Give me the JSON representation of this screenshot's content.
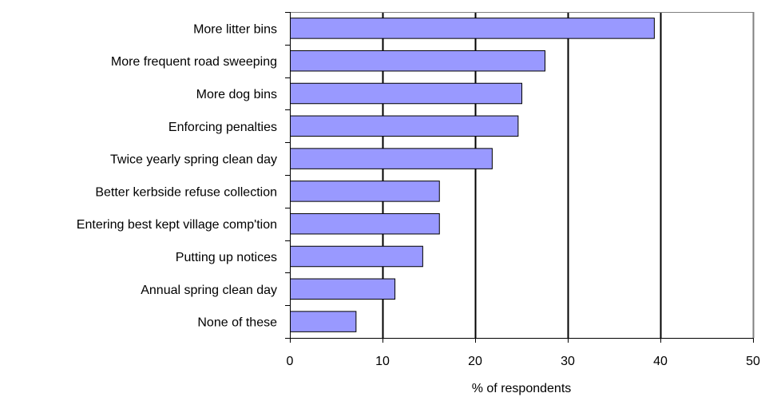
{
  "chart_data": {
    "type": "bar",
    "orientation": "horizontal",
    "categories": [
      "More litter bins",
      "More frequent road sweeping",
      "More dog bins",
      "Enforcing penalties",
      "Twice yearly spring clean day",
      "Better kerbside refuse collection",
      "Entering best kept village comp'tion",
      "Putting up notices",
      "Annual spring clean day",
      "None of these"
    ],
    "values": [
      39.3,
      27.5,
      25.0,
      24.6,
      21.8,
      16.1,
      16.1,
      14.3,
      11.3,
      7.1
    ],
    "xlabel": "% of respondents",
    "xlim": [
      0,
      50
    ],
    "xticks": [
      0,
      10,
      20,
      30,
      40,
      50
    ],
    "tick_labels": [
      "0",
      "10",
      "20",
      "30",
      "40",
      "50"
    ],
    "grid": "vertical",
    "legend": "none",
    "colors": {
      "bar_fill": "#9999ff",
      "bar_stroke": "#000000",
      "grid": "#000000",
      "frame": "#808080"
    }
  }
}
